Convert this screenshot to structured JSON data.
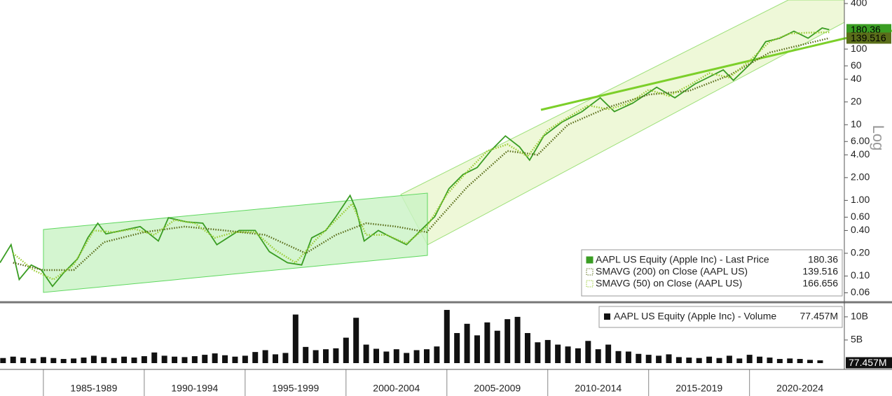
{
  "chart_data": [
    {
      "type": "line",
      "scale": "log",
      "y_label": "Log",
      "xlim": [
        1982.85,
        2024.7
      ],
      "ylim": [
        0.047,
        445
      ],
      "yticks": [
        0.06,
        {
          "value": 0.1,
          "label": "0.10"
        },
        {
          "value": 0.2,
          "label": "0.20"
        },
        {
          "value": 0.4,
          "label": "0.40"
        },
        {
          "value": 0.6,
          "label": "0.60"
        },
        {
          "value": 1,
          "label": "1.00"
        },
        {
          "value": 2,
          "label": "2.00"
        },
        {
          "value": 4,
          "label": "4.00"
        },
        {
          "value": 6,
          "label": "6.00"
        },
        10,
        20,
        40,
        60,
        100,
        400
      ],
      "series": [
        {
          "name": "AAPL US Equity (Apple Inc) - Last Price",
          "last": 180.36,
          "color": "#3a9d23",
          "style": "solid",
          "x": [
            1982.85,
            1983.4,
            1983.8,
            1984.4,
            1984.9,
            1985.45,
            1986,
            1986.7,
            1987.2,
            1987.7,
            1988.1,
            1988.9,
            1989.8,
            1990.7,
            1991.2,
            1992.1,
            1992.9,
            1993.6,
            1994.7,
            1995.5,
            1996.2,
            1997.1,
            1997.8,
            1998.3,
            1999,
            1999.5,
            2000.2,
            2000.5,
            2000.9,
            2001.6,
            2002.3,
            2003,
            2003.7,
            2004.4,
            2005.1,
            2005.8,
            2006.5,
            2007.2,
            2007.9,
            2008.6,
            2009.1,
            2009.8,
            2010.7,
            2011.7,
            2012.6,
            2013.3,
            2014.2,
            2015.4,
            2016.3,
            2017.3,
            2018.7,
            2019.2,
            2020.1,
            2020.8,
            2021.5,
            2022.2,
            2022.9,
            2023.6,
            2023.95
          ],
          "values": [
            0.15,
            0.26,
            0.09,
            0.14,
            0.12,
            0.073,
            0.11,
            0.17,
            0.32,
            0.5,
            0.36,
            0.4,
            0.45,
            0.29,
            0.59,
            0.52,
            0.5,
            0.26,
            0.4,
            0.4,
            0.21,
            0.15,
            0.14,
            0.32,
            0.4,
            0.61,
            1.16,
            0.76,
            0.29,
            0.4,
            0.32,
            0.26,
            0.4,
            0.61,
            1.43,
            2.2,
            2.72,
            4.6,
            7.1,
            5.1,
            3.4,
            7.1,
            10.8,
            14.9,
            22.7,
            14.9,
            19.2,
            31.3,
            22.7,
            34.6,
            53,
            38.6,
            66,
            125,
            139,
            172,
            139,
            190,
            180.36
          ]
        },
        {
          "name": "SMAVG (200)  on Close (AAPL US)",
          "last": 139.516,
          "color": "#5a6e1a",
          "style": "dotted",
          "x": [
            1983.5,
            1985,
            1986.5,
            1988,
            1990,
            1992,
            1994,
            1996,
            1998,
            1999.5,
            2001,
            2002.5,
            2004,
            2006,
            2008,
            2009.5,
            2011,
            2013,
            2015,
            2017,
            2019,
            2021,
            2023.95
          ],
          "values": [
            0.15,
            0.12,
            0.12,
            0.28,
            0.38,
            0.45,
            0.4,
            0.35,
            0.2,
            0.35,
            0.5,
            0.45,
            0.38,
            1.5,
            4.5,
            4.0,
            10,
            17,
            25,
            28,
            45,
            90,
            139.516
          ]
        },
        {
          "name": "SMAVG (50)  on Close (AAPL US)",
          "last": 166.656,
          "color": "#9acd32",
          "style": "dotted",
          "x": [
            1983.5,
            1984.5,
            1985.5,
            1986.5,
            1987.5,
            1988.5,
            1989.5,
            1990.5,
            1991.5,
            1992.5,
            1993.5,
            1994.5,
            1995.5,
            1996.5,
            1997.5,
            1998.5,
            1999.5,
            2000.3,
            2001,
            2002,
            2003,
            2004,
            2005,
            2006,
            2007,
            2008,
            2009,
            2010,
            2011,
            2012,
            2013,
            2014,
            2015,
            2016,
            2017,
            2018,
            2019,
            2020,
            2021,
            2022,
            2023,
            2023.95
          ],
          "values": [
            0.2,
            0.12,
            0.09,
            0.14,
            0.4,
            0.38,
            0.42,
            0.35,
            0.55,
            0.5,
            0.32,
            0.38,
            0.38,
            0.22,
            0.15,
            0.3,
            0.55,
            0.9,
            0.35,
            0.35,
            0.27,
            0.45,
            1.2,
            2.4,
            4.5,
            5.5,
            3.8,
            8.5,
            12.5,
            18,
            16,
            19,
            29,
            24,
            33,
            48,
            42,
            70,
            125,
            160,
            165,
            166.656
          ]
        }
      ]
    },
    {
      "type": "bar",
      "xlim": [
        1982.85,
        2024.7
      ],
      "ylim": [
        0,
        12400000000
      ],
      "yticks": [
        {
          "value": 5000000000,
          "label": "5B"
        },
        {
          "value": 10000000000,
          "label": "10B"
        }
      ],
      "xticks": [
        {
          "value": 1987.5,
          "label": "1985-1989"
        },
        {
          "value": 1992.5,
          "label": "1990-1994"
        },
        {
          "value": 1997.5,
          "label": "1995-1999"
        },
        {
          "value": 2002.5,
          "label": "2000-2004"
        },
        {
          "value": 2007.5,
          "label": "2005-2009"
        },
        {
          "value": 2012.5,
          "label": "2010-2014"
        },
        {
          "value": 2017.5,
          "label": "2015-2019"
        },
        {
          "value": 2022.5,
          "label": "2020-2024"
        }
      ],
      "series": [
        {
          "name": "AAPL US Equity (Apple Inc) - Volume",
          "last": {
            "value": 77457000,
            "label": "77.457M"
          },
          "color": "#111111",
          "x": [
            1983,
            1983.5,
            1984,
            1984.5,
            1985,
            1985.5,
            1986,
            1986.5,
            1987,
            1987.5,
            1988,
            1988.5,
            1989,
            1989.5,
            1990,
            1990.5,
            1991,
            1991.5,
            1992,
            1992.5,
            1993,
            1993.5,
            1994,
            1994.5,
            1995,
            1995.5,
            1996,
            1996.5,
            1997,
            1997.5,
            1998,
            1998.5,
            1999,
            1999.5,
            2000,
            2000.5,
            2001,
            2001.5,
            2002,
            2002.5,
            2003,
            2003.5,
            2004,
            2004.5,
            2005,
            2005.5,
            2006,
            2006.5,
            2007,
            2007.5,
            2008,
            2008.5,
            2009,
            2009.5,
            2010,
            2010.5,
            2011,
            2011.5,
            2012,
            2012.5,
            2013,
            2013.5,
            2014,
            2014.5,
            2015,
            2015.5,
            2016,
            2016.5,
            2017,
            2017.5,
            2018,
            2018.5,
            2019,
            2019.5,
            2020,
            2020.5,
            2021,
            2021.5,
            2022,
            2022.5,
            2023,
            2023.5
          ],
          "values": [
            1100000000.0,
            1400000000.0,
            1200000000.0,
            1000000000.0,
            1300000000.0,
            1100000000.0,
            900000000.0,
            1000000000.0,
            1200000000.0,
            1600000000.0,
            1300000000.0,
            1100000000.0,
            1400000000.0,
            1200000000.0,
            1500000000.0,
            2300000000.0,
            1600000000.0,
            1400000000.0,
            1300000000.0,
            1500000000.0,
            1800000000.0,
            2100000000.0,
            1700000000.0,
            1400000000.0,
            1600000000.0,
            2400000000.0,
            2800000000.0,
            1900000000.0,
            2200000000.0,
            10500000000.0,
            3500000000.0,
            2800000000.0,
            3000000000.0,
            3200000000.0,
            5500000000.0,
            9800000000.0,
            4000000000.0,
            3100000000.0,
            2500000000.0,
            3000000000.0,
            2200000000.0,
            2800000000.0,
            3000000000.0,
            3600000000.0,
            11500000000.0,
            6500000000.0,
            8500000000.0,
            6000000000.0,
            8800000000.0,
            7000000000.0,
            9500000000.0,
            10000000000.0,
            6500000000.0,
            4500000000.0,
            5000000000.0,
            4000000000.0,
            3600000000.0,
            3200000000.0,
            4800000000.0,
            3000000000.0,
            4000000000.0,
            2600000000.0,
            2500000000.0,
            2000000000.0,
            1800000000.0,
            1600000000.0,
            1900000000.0,
            1300000000.0,
            1200000000.0,
            1100000000.0,
            1400000000.0,
            1100000000.0,
            1600000000.0,
            1000000000.0,
            1800000000.0,
            1400000000.0,
            1200000000.0,
            900000000.0,
            1000000000.0,
            900000000.0,
            700000000.0,
            600000000.0
          ]
        }
      ]
    }
  ]
}
